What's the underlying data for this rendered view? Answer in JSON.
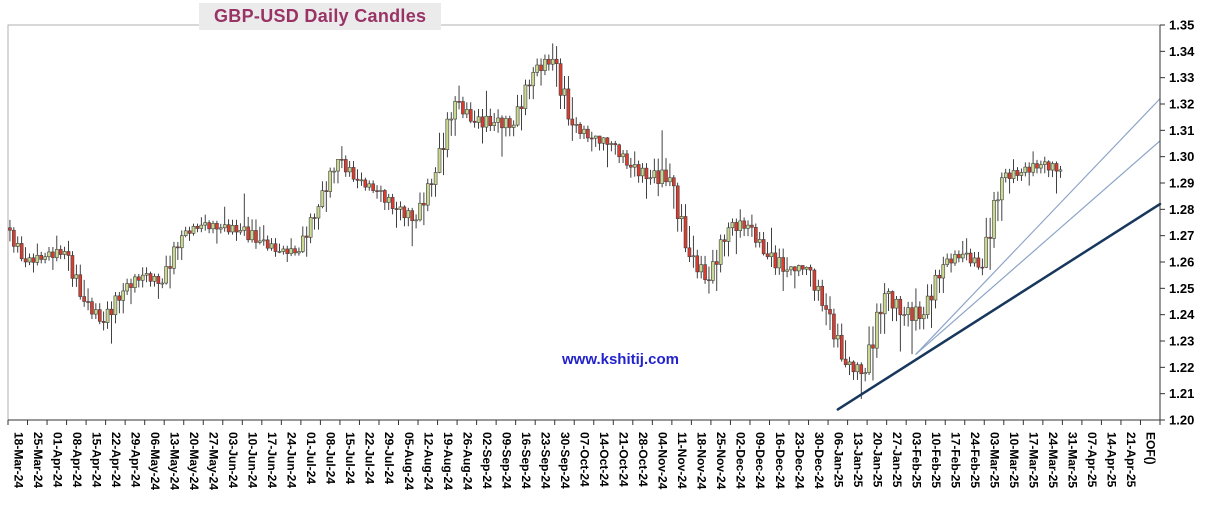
{
  "chart": {
    "title": "GBP-USD Daily Candles",
    "watermark": "www.kshitij.com",
    "title_color": "#993366",
    "watermark_color": "#2222cc"
  },
  "chart_data": {
    "type": "candlestick",
    "title": "GBP-USD Daily Candles",
    "grid": false,
    "x_axis": {
      "labels": [
        "18-Mar-24",
        "25-Mar-24",
        "01-Apr-24",
        "08-Apr-24",
        "15-Apr-24",
        "22-Apr-24",
        "29-Apr-24",
        "06-May-24",
        "13-May-24",
        "20-May-24",
        "27-May-24",
        "03-Jun-24",
        "10-Jun-24",
        "17-Jun-24",
        "24-Jun-24",
        "01-Jul-24",
        "08-Jul-24",
        "15-Jul-24",
        "22-Jul-24",
        "29-Jul-24",
        "05-Aug-24",
        "12-Aug-24",
        "19-Aug-24",
        "26-Aug-24",
        "02-Sep-24",
        "09-Sep-24",
        "16-Sep-24",
        "23-Sep-24",
        "30-Sep-24",
        "07-Oct-24",
        "14-Oct-24",
        "21-Oct-24",
        "28-Oct-24",
        "04-Nov-24",
        "11-Nov-24",
        "18-Nov-24",
        "25-Nov-24",
        "02-Dec-24",
        "09-Dec-24",
        "16-Dec-24",
        "23-Dec-24",
        "30-Dec-24",
        "06-Jan-25",
        "13-Jan-25",
        "20-Jan-25",
        "27-Jan-25",
        "03-Feb-25",
        "10-Feb-25",
        "17-Feb-25",
        "24-Feb-25",
        "03-Mar-25",
        "10-Mar-25",
        "17-Mar-25",
        "24-Mar-25",
        "31-Mar-25",
        "07-Apr-25",
        "14-Apr-25",
        "21-Apr-25",
        "EOF()"
      ],
      "note": "weekly tick labels, daily candles"
    },
    "y_axis": {
      "min": 1.2,
      "max": 1.35,
      "step": 0.01,
      "ticks": [
        "1.20",
        "1.21",
        "1.22",
        "1.23",
        "1.24",
        "1.25",
        "1.26",
        "1.27",
        "1.28",
        "1.29",
        "1.30",
        "1.31",
        "1.32",
        "1.33",
        "1.34",
        "1.35"
      ]
    },
    "weekly_ohlc": [
      [
        "18-Mar-24",
        1.273,
        1.276,
        1.258,
        1.26
      ],
      [
        "25-Mar-24",
        1.26,
        1.267,
        1.256,
        1.262
      ],
      [
        "01-Apr-24",
        1.262,
        1.27,
        1.257,
        1.264
      ],
      [
        "08-Apr-24",
        1.264,
        1.268,
        1.243,
        1.245
      ],
      [
        "15-Apr-24",
        1.245,
        1.25,
        1.234,
        1.237
      ],
      [
        "22-Apr-24",
        1.237,
        1.252,
        1.229,
        1.249
      ],
      [
        "29-Apr-24",
        1.249,
        1.258,
        1.244,
        1.255
      ],
      [
        "06-May-24",
        1.255,
        1.258,
        1.246,
        1.252
      ],
      [
        "13-May-24",
        1.252,
        1.272,
        1.25,
        1.27
      ],
      [
        "20-May-24",
        1.27,
        1.277,
        1.268,
        1.274
      ],
      [
        "27-May-24",
        1.274,
        1.278,
        1.267,
        1.273
      ],
      [
        "03-Jun-24",
        1.273,
        1.281,
        1.268,
        1.272
      ],
      [
        "10-Jun-24",
        1.272,
        1.286,
        1.265,
        1.268
      ],
      [
        "17-Jun-24",
        1.268,
        1.274,
        1.262,
        1.264
      ],
      [
        "24-Jun-24",
        1.264,
        1.269,
        1.26,
        1.264
      ],
      [
        "01-Jul-24",
        1.264,
        1.282,
        1.262,
        1.281
      ],
      [
        "08-Jul-24",
        1.281,
        1.299,
        1.279,
        1.299
      ],
      [
        "15-Jul-24",
        1.299,
        1.304,
        1.288,
        1.291
      ],
      [
        "22-Jul-24",
        1.291,
        1.294,
        1.284,
        1.287
      ],
      [
        "29-Jul-24",
        1.287,
        1.289,
        1.273,
        1.28
      ],
      [
        "05-Aug-24",
        1.28,
        1.283,
        1.266,
        1.276
      ],
      [
        "12-Aug-24",
        1.276,
        1.296,
        1.274,
        1.294
      ],
      [
        "19-Aug-24",
        1.294,
        1.323,
        1.293,
        1.321
      ],
      [
        "26-Aug-24",
        1.321,
        1.327,
        1.311,
        1.313
      ],
      [
        "02-Sep-24",
        1.313,
        1.325,
        1.305,
        1.313
      ],
      [
        "09-Sep-24",
        1.313,
        1.318,
        1.3,
        1.312
      ],
      [
        "16-Sep-24",
        1.312,
        1.334,
        1.31,
        1.332
      ],
      [
        "23-Sep-24",
        1.332,
        1.343,
        1.327,
        1.337
      ],
      [
        "30-Sep-24",
        1.337,
        1.342,
        1.306,
        1.312
      ],
      [
        "07-Oct-24",
        1.312,
        1.315,
        1.302,
        1.307
      ],
      [
        "14-Oct-24",
        1.307,
        1.308,
        1.296,
        1.305
      ],
      [
        "21-Oct-24",
        1.305,
        1.306,
        1.292,
        1.296
      ],
      [
        "28-Oct-24",
        1.296,
        1.302,
        1.284,
        1.292
      ],
      [
        "04-Nov-24",
        1.292,
        1.31,
        1.285,
        1.292
      ],
      [
        "11-Nov-24",
        1.292,
        1.293,
        1.26,
        1.262
      ],
      [
        "18-Nov-24",
        1.262,
        1.27,
        1.248,
        1.253
      ],
      [
        "25-Nov-24",
        1.253,
        1.275,
        1.249,
        1.273
      ],
      [
        "02-Dec-24",
        1.273,
        1.28,
        1.263,
        1.274
      ],
      [
        "09-Dec-24",
        1.274,
        1.278,
        1.261,
        1.262
      ],
      [
        "16-Dec-24",
        1.262,
        1.273,
        1.249,
        1.257
      ],
      [
        "23-Dec-24",
        1.257,
        1.259,
        1.25,
        1.258
      ],
      [
        "30-Dec-24",
        1.258,
        1.259,
        1.236,
        1.242
      ],
      [
        "06-Jan-25",
        1.242,
        1.247,
        1.22,
        1.221
      ],
      [
        "13-Jan-25",
        1.221,
        1.224,
        1.208,
        1.218
      ],
      [
        "20-Jan-25",
        1.218,
        1.252,
        1.215,
        1.248
      ],
      [
        "27-Jan-25",
        1.248,
        1.25,
        1.226,
        1.24
      ],
      [
        "03-Feb-25",
        1.24,
        1.25,
        1.225,
        1.24
      ],
      [
        "10-Feb-25",
        1.24,
        1.262,
        1.235,
        1.259
      ],
      [
        "17-Feb-25",
        1.259,
        1.268,
        1.256,
        1.263
      ],
      [
        "24-Feb-25",
        1.263,
        1.269,
        1.255,
        1.258
      ],
      [
        "03-Mar-25",
        1.258,
        1.294,
        1.257,
        1.292
      ],
      [
        "10-Mar-25",
        1.292,
        1.299,
        1.286,
        1.294
      ],
      [
        "17-Mar-25",
        1.294,
        1.302,
        1.289,
        1.297
      ],
      [
        "24-Mar-25",
        1.297,
        1.3,
        1.286,
        1.295
      ]
    ],
    "trendlines": [
      {
        "name": "support-trendline-main",
        "from": {
          "label": "06-Jan-25",
          "price": 1.204
        },
        "to": {
          "label": "EOF()",
          "price": 1.282
        },
        "color": "#17375d",
        "width": 2.5
      },
      {
        "name": "support-trendline-inner-upper",
        "from": {
          "label": "03-Feb-25",
          "price": 1.225
        },
        "to": {
          "label": "EOF()",
          "price": 1.322
        },
        "color": "#8ea5c8",
        "width": 1.2
      },
      {
        "name": "support-trendline-inner-lower",
        "from": {
          "label": "03-Feb-25",
          "price": 1.225
        },
        "to": {
          "label": "EOF()",
          "price": 1.306
        },
        "color": "#8ea5c8",
        "width": 1.2
      }
    ],
    "colors": {
      "up_fill": "#c9d98f",
      "up_stroke": "#3f3f3f",
      "down_fill": "#dd3b2e",
      "down_stroke": "#3f3f3f",
      "wick": "#111111",
      "frame": "#b0b0b0",
      "axis": "#333333"
    }
  }
}
